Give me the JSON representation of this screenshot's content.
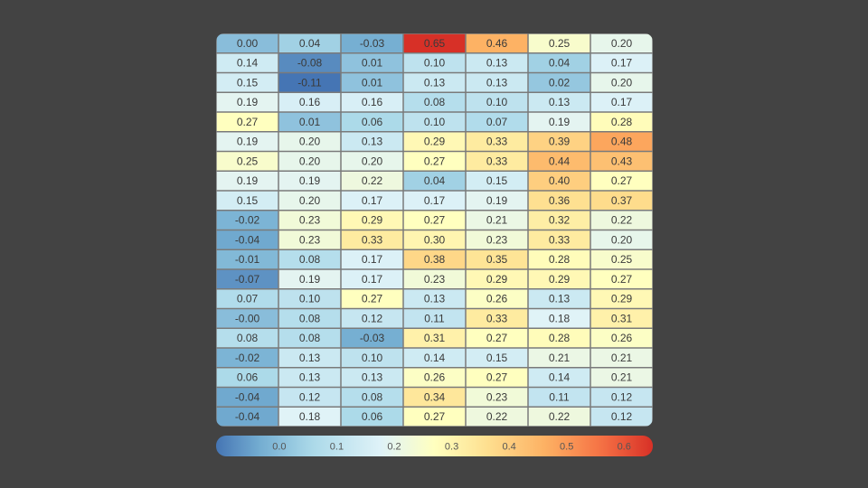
{
  "chart_data": {
    "type": "heatmap",
    "rows": 20,
    "cols": 7,
    "value_range": [
      -0.11,
      0.65
    ],
    "colormap": "RdYlBu_r",
    "colorbar": {
      "orientation": "horizontal",
      "position": "bottom",
      "ticks": [
        0.0,
        0.1,
        0.2,
        0.3,
        0.4,
        0.5,
        0.6
      ],
      "tick_labels": [
        "0.0",
        "0.1",
        "0.2",
        "0.3",
        "0.4",
        "0.5",
        "0.6"
      ]
    },
    "values": [
      [
        0.0,
        0.04,
        -0.03,
        0.65,
        0.46,
        0.25,
        0.2
      ],
      [
        0.14,
        -0.08,
        0.01,
        0.1,
        0.13,
        0.04,
        0.17
      ],
      [
        0.15,
        -0.11,
        0.01,
        0.13,
        0.13,
        0.02,
        0.2
      ],
      [
        0.19,
        0.16,
        0.16,
        0.08,
        0.1,
        0.13,
        0.17
      ],
      [
        0.27,
        0.01,
        0.06,
        0.1,
        0.07,
        0.19,
        0.28
      ],
      [
        0.19,
        0.2,
        0.13,
        0.29,
        0.33,
        0.39,
        0.48
      ],
      [
        0.25,
        0.2,
        0.2,
        0.27,
        0.33,
        0.44,
        0.43
      ],
      [
        0.19,
        0.19,
        0.22,
        0.04,
        0.15,
        0.4,
        0.27
      ],
      [
        0.15,
        0.2,
        0.17,
        0.17,
        0.19,
        0.36,
        0.37
      ],
      [
        -0.02,
        0.23,
        0.29,
        0.27,
        0.21,
        0.32,
        0.22
      ],
      [
        -0.04,
        0.23,
        0.33,
        0.3,
        0.23,
        0.33,
        0.2
      ],
      [
        -0.01,
        0.08,
        0.17,
        0.38,
        0.35,
        0.28,
        0.25
      ],
      [
        -0.07,
        0.19,
        0.17,
        0.23,
        0.29,
        0.29,
        0.27
      ],
      [
        0.07,
        0.1,
        0.27,
        0.13,
        0.26,
        0.13,
        0.29
      ],
      [
        -0.0,
        0.08,
        0.12,
        0.11,
        0.33,
        0.18,
        0.31
      ],
      [
        0.08,
        0.08,
        -0.03,
        0.31,
        0.27,
        0.28,
        0.26
      ],
      [
        -0.02,
        0.13,
        0.1,
        0.14,
        0.15,
        0.21,
        0.21
      ],
      [
        0.06,
        0.13,
        0.13,
        0.26,
        0.27,
        0.14,
        0.21
      ],
      [
        -0.04,
        0.12,
        0.08,
        0.34,
        0.23,
        0.11,
        0.12
      ],
      [
        -0.04,
        0.18,
        0.06,
        0.27,
        0.22,
        0.22,
        0.12
      ]
    ],
    "labels": [
      [
        "0.00",
        "0.04",
        "-0.03",
        "0.65",
        "0.46",
        "0.25",
        "0.20"
      ],
      [
        "0.14",
        "-0.08",
        "0.01",
        "0.10",
        "0.13",
        "0.04",
        "0.17"
      ],
      [
        "0.15",
        "-0.11",
        "0.01",
        "0.13",
        "0.13",
        "0.02",
        "0.20"
      ],
      [
        "0.19",
        "0.16",
        "0.16",
        "0.08",
        "0.10",
        "0.13",
        "0.17"
      ],
      [
        "0.27",
        "0.01",
        "0.06",
        "0.10",
        "0.07",
        "0.19",
        "0.28"
      ],
      [
        "0.19",
        "0.20",
        "0.13",
        "0.29",
        "0.33",
        "0.39",
        "0.48"
      ],
      [
        "0.25",
        "0.20",
        "0.20",
        "0.27",
        "0.33",
        "0.44",
        "0.43"
      ],
      [
        "0.19",
        "0.19",
        "0.22",
        "0.04",
        "0.15",
        "0.40",
        "0.27"
      ],
      [
        "0.15",
        "0.20",
        "0.17",
        "0.17",
        "0.19",
        "0.36",
        "0.37"
      ],
      [
        "-0.02",
        "0.23",
        "0.29",
        "0.27",
        "0.21",
        "0.32",
        "0.22"
      ],
      [
        "-0.04",
        "0.23",
        "0.33",
        "0.30",
        "0.23",
        "0.33",
        "0.20"
      ],
      [
        "-0.01",
        "0.08",
        "0.17",
        "0.38",
        "0.35",
        "0.28",
        "0.25"
      ],
      [
        "-0.07",
        "0.19",
        "0.17",
        "0.23",
        "0.29",
        "0.29",
        "0.27"
      ],
      [
        "0.07",
        "0.10",
        "0.27",
        "0.13",
        "0.26",
        "0.13",
        "0.29"
      ],
      [
        "-0.00",
        "0.08",
        "0.12",
        "0.11",
        "0.33",
        "0.18",
        "0.31"
      ],
      [
        "0.08",
        "0.08",
        "-0.03",
        "0.31",
        "0.27",
        "0.28",
        "0.26"
      ],
      [
        "-0.02",
        "0.13",
        "0.10",
        "0.14",
        "0.15",
        "0.21",
        "0.21"
      ],
      [
        "0.06",
        "0.13",
        "0.13",
        "0.26",
        "0.27",
        "0.14",
        "0.21"
      ],
      [
        "-0.04",
        "0.12",
        "0.08",
        "0.34",
        "0.23",
        "0.11",
        "0.12"
      ],
      [
        "-0.04",
        "0.18",
        "0.06",
        "0.27",
        "0.22",
        "0.22",
        "0.12"
      ]
    ],
    "colors": {
      "background": "#434343",
      "cell_border": "#7a7a7a",
      "text": "#3a3a3a"
    }
  }
}
